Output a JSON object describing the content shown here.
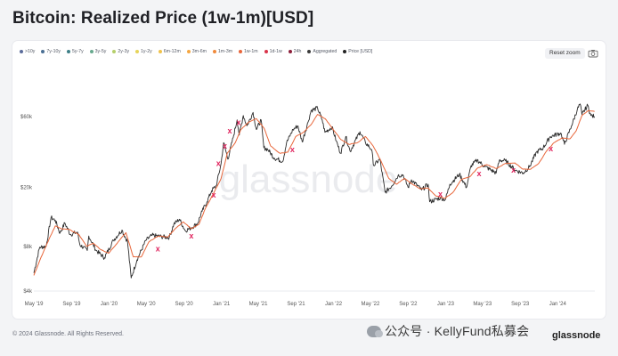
{
  "page": {
    "title": "Bitcoin: Realized Price (1w-1m)[USD]",
    "reset_zoom": "Reset zoom",
    "footer": "© 2024 Glassnode. All Rights Reserved.",
    "watermark_text": "公众号 · KellyFund私募会",
    "brand": "glassnode",
    "chart_watermark": "glassnode",
    "camera_icon": "camera-icon"
  },
  "legend": [
    {
      "label": ">10y",
      "color": "#5b6c9b"
    },
    {
      "label": "7y-10y",
      "color": "#4a6f94"
    },
    {
      "label": "5y-7y",
      "color": "#3e7f87"
    },
    {
      "label": "3y-5y",
      "color": "#67a98e"
    },
    {
      "label": "2y-3y",
      "color": "#b5cf6b"
    },
    {
      "label": "1y-2y",
      "color": "#e6d45a"
    },
    {
      "label": "6m-12m",
      "color": "#f0c24a"
    },
    {
      "label": "3m-6m",
      "color": "#f5a742"
    },
    {
      "label": "1m-3m",
      "color": "#f08a3c"
    },
    {
      "label": "1w-1m",
      "color": "#e8663a"
    },
    {
      "label": "1d-1w",
      "color": "#d9344a"
    },
    {
      "label": "24h",
      "color": "#8c1f3a"
    },
    {
      "label": "Aggregated",
      "color": "#3a3a3a"
    },
    {
      "label": "Price [USD]",
      "color": "#222222"
    }
  ],
  "chart_data": {
    "type": "line",
    "y_scale": "log",
    "ylim": [
      4000,
      100000
    ],
    "y_ticks": [
      {
        "value": 4000,
        "label": "$4k"
      },
      {
        "value": 8000,
        "label": "$8k"
      },
      {
        "value": 20000,
        "label": "$20k"
      },
      {
        "value": 60000,
        "label": "$60k"
      }
    ],
    "x_range": [
      "2019-05-01",
      "2024-05-01"
    ],
    "x_ticks": [
      {
        "date": "2019-05-01",
        "label": "May '19"
      },
      {
        "date": "2019-09-01",
        "label": "Sep '19"
      },
      {
        "date": "2020-01-01",
        "label": "Jan '20"
      },
      {
        "date": "2020-05-01",
        "label": "May '20"
      },
      {
        "date": "2020-09-01",
        "label": "Sep '20"
      },
      {
        "date": "2021-01-01",
        "label": "Jan '21"
      },
      {
        "date": "2021-05-01",
        "label": "May '21"
      },
      {
        "date": "2021-09-01",
        "label": "Sep '21"
      },
      {
        "date": "2022-01-01",
        "label": "Jan '22"
      },
      {
        "date": "2022-05-01",
        "label": "May '22"
      },
      {
        "date": "2022-09-01",
        "label": "Sep '22"
      },
      {
        "date": "2023-01-01",
        "label": "Jan '23"
      },
      {
        "date": "2023-05-01",
        "label": "May '23"
      },
      {
        "date": "2023-09-01",
        "label": "Sep '23"
      },
      {
        "date": "2024-01-01",
        "label": "Jan '24"
      }
    ],
    "grid": false,
    "legend_position": "top",
    "series": [
      {
        "name": "Price [USD]",
        "color": "#2b2b2b",
        "points": [
          [
            "2019-05-01",
            5300
          ],
          [
            "2019-05-20",
            7900
          ],
          [
            "2019-06-10",
            8000
          ],
          [
            "2019-06-26",
            12500
          ],
          [
            "2019-07-10",
            12000
          ],
          [
            "2019-07-25",
            9800
          ],
          [
            "2019-08-10",
            11500
          ],
          [
            "2019-08-28",
            9600
          ],
          [
            "2019-09-20",
            10000
          ],
          [
            "2019-09-28",
            8200
          ],
          [
            "2019-10-22",
            7500
          ],
          [
            "2019-10-27",
            9400
          ],
          [
            "2019-11-20",
            7500
          ],
          [
            "2019-12-17",
            6700
          ],
          [
            "2020-01-15",
            8800
          ],
          [
            "2020-02-12",
            10300
          ],
          [
            "2020-03-01",
            8600
          ],
          [
            "2020-03-13",
            4900
          ],
          [
            "2020-04-01",
            6500
          ],
          [
            "2020-04-30",
            8800
          ],
          [
            "2020-05-20",
            9500
          ],
          [
            "2020-06-20",
            9300
          ],
          [
            "2020-07-15",
            9200
          ],
          [
            "2020-07-30",
            11300
          ],
          [
            "2020-08-17",
            12200
          ],
          [
            "2020-09-05",
            10200
          ],
          [
            "2020-09-25",
            10700
          ],
          [
            "2020-10-15",
            11400
          ],
          [
            "2020-10-30",
            13800
          ],
          [
            "2020-11-15",
            16000
          ],
          [
            "2020-11-30",
            19000
          ],
          [
            "2020-12-15",
            20500
          ],
          [
            "2020-12-31",
            29000
          ],
          [
            "2021-01-08",
            40000
          ],
          [
            "2021-01-22",
            31000
          ],
          [
            "2021-02-10",
            45000
          ],
          [
            "2021-02-21",
            57000
          ],
          [
            "2021-02-28",
            45000
          ],
          [
            "2021-03-13",
            61000
          ],
          [
            "2021-03-25",
            52000
          ],
          [
            "2021-04-14",
            64000
          ],
          [
            "2021-04-25",
            49000
          ],
          [
            "2021-05-10",
            57000
          ],
          [
            "2021-05-19",
            37000
          ],
          [
            "2021-06-01",
            36000
          ],
          [
            "2021-06-22",
            31500
          ],
          [
            "2021-07-20",
            30000
          ],
          [
            "2021-08-01",
            40000
          ],
          [
            "2021-08-22",
            49000
          ],
          [
            "2021-09-07",
            52000
          ],
          [
            "2021-09-21",
            40500
          ],
          [
            "2021-10-10",
            55000
          ],
          [
            "2021-10-20",
            66000
          ],
          [
            "2021-11-10",
            68500
          ],
          [
            "2021-11-25",
            57000
          ],
          [
            "2021-12-04",
            47000
          ],
          [
            "2021-12-27",
            51000
          ],
          [
            "2022-01-10",
            41000
          ],
          [
            "2022-01-24",
            34000
          ],
          [
            "2022-02-10",
            44000
          ],
          [
            "2022-02-24",
            35000
          ],
          [
            "2022-03-28",
            47500
          ],
          [
            "2022-04-15",
            40000
          ],
          [
            "2022-05-05",
            36000
          ],
          [
            "2022-05-12",
            28000
          ],
          [
            "2022-06-01",
            31000
          ],
          [
            "2022-06-18",
            18500
          ],
          [
            "2022-07-10",
            20500
          ],
          [
            "2022-07-30",
            24000
          ],
          [
            "2022-08-15",
            24300
          ],
          [
            "2022-09-01",
            20000
          ],
          [
            "2022-09-12",
            22500
          ],
          [
            "2022-10-15",
            19200
          ],
          [
            "2022-11-05",
            21000
          ],
          [
            "2022-11-10",
            16000
          ],
          [
            "2022-12-15",
            17000
          ],
          [
            "2022-12-31",
            16500
          ],
          [
            "2023-01-15",
            21000
          ],
          [
            "2023-02-15",
            24500
          ],
          [
            "2023-03-10",
            20000
          ],
          [
            "2023-03-25",
            28000
          ],
          [
            "2023-04-14",
            30500
          ],
          [
            "2023-05-10",
            27500
          ],
          [
            "2023-06-15",
            25000
          ],
          [
            "2023-06-25",
            30500
          ],
          [
            "2023-07-15",
            30200
          ],
          [
            "2023-08-17",
            26000
          ],
          [
            "2023-09-11",
            25000
          ],
          [
            "2023-10-01",
            27500
          ],
          [
            "2023-10-24",
            34500
          ],
          [
            "2023-11-15",
            37000
          ],
          [
            "2023-12-08",
            44000
          ],
          [
            "2024-01-11",
            46500
          ],
          [
            "2024-01-23",
            39000
          ],
          [
            "2024-02-15",
            52000
          ],
          [
            "2024-03-05",
            67000
          ],
          [
            "2024-03-14",
            73000
          ],
          [
            "2024-03-20",
            62000
          ],
          [
            "2024-04-08",
            71500
          ],
          [
            "2024-04-18",
            61000
          ],
          [
            "2024-04-30",
            60000
          ]
        ]
      },
      {
        "name": "1w-1m",
        "color": "#e8663a",
        "points": [
          [
            "2019-05-01",
            5100
          ],
          [
            "2019-05-25",
            6800
          ],
          [
            "2019-06-20",
            9000
          ],
          [
            "2019-07-10",
            11000
          ],
          [
            "2019-07-30",
            10500
          ],
          [
            "2019-08-25",
            10400
          ],
          [
            "2019-09-25",
            9600
          ],
          [
            "2019-10-20",
            8000
          ],
          [
            "2019-11-10",
            8400
          ],
          [
            "2019-12-05",
            7600
          ],
          [
            "2019-12-31",
            7200
          ],
          [
            "2020-01-31",
            8600
          ],
          [
            "2020-02-25",
            9900
          ],
          [
            "2020-03-20",
            6800
          ],
          [
            "2020-04-15",
            6800
          ],
          [
            "2020-05-10",
            8600
          ],
          [
            "2020-06-10",
            9400
          ],
          [
            "2020-07-10",
            9250
          ],
          [
            "2020-08-05",
            10600
          ],
          [
            "2020-08-30",
            11700
          ],
          [
            "2020-09-25",
            10500
          ],
          [
            "2020-10-20",
            11300
          ],
          [
            "2020-11-10",
            14500
          ],
          [
            "2020-12-05",
            18000
          ],
          [
            "2020-12-31",
            23000
          ],
          [
            "2021-01-20",
            34000
          ],
          [
            "2021-02-15",
            40000
          ],
          [
            "2021-03-05",
            49000
          ],
          [
            "2021-03-31",
            55000
          ],
          [
            "2021-04-25",
            58000
          ],
          [
            "2021-05-20",
            50000
          ],
          [
            "2021-06-10",
            38000
          ],
          [
            "2021-07-10",
            34000
          ],
          [
            "2021-08-05",
            34500
          ],
          [
            "2021-08-31",
            44000
          ],
          [
            "2021-09-25",
            47000
          ],
          [
            "2021-10-20",
            53000
          ],
          [
            "2021-11-10",
            62000
          ],
          [
            "2021-12-05",
            58000
          ],
          [
            "2021-12-31",
            49000
          ],
          [
            "2022-01-25",
            42000
          ],
          [
            "2022-02-20",
            39000
          ],
          [
            "2022-03-20",
            40000
          ],
          [
            "2022-04-15",
            44000
          ],
          [
            "2022-05-10",
            38000
          ],
          [
            "2022-06-05",
            30000
          ],
          [
            "2022-06-30",
            23000
          ],
          [
            "2022-07-25",
            21000
          ],
          [
            "2022-08-20",
            23000
          ],
          [
            "2022-09-15",
            21000
          ],
          [
            "2022-10-10",
            19600
          ],
          [
            "2022-11-05",
            19800
          ],
          [
            "2022-11-30",
            17500
          ],
          [
            "2022-12-31",
            16900
          ],
          [
            "2023-01-25",
            18500
          ],
          [
            "2023-02-20",
            22500
          ],
          [
            "2023-03-20",
            23500
          ],
          [
            "2023-04-15",
            27000
          ],
          [
            "2023-05-15",
            28500
          ],
          [
            "2023-06-15",
            26800
          ],
          [
            "2023-07-15",
            29000
          ],
          [
            "2023-08-15",
            29200
          ],
          [
            "2023-09-10",
            26500
          ],
          [
            "2023-10-05",
            26500
          ],
          [
            "2023-10-31",
            29000
          ],
          [
            "2023-11-25",
            35000
          ],
          [
            "2023-12-20",
            40000
          ],
          [
            "2024-01-15",
            43000
          ],
          [
            "2024-02-10",
            42500
          ],
          [
            "2024-03-01",
            48000
          ],
          [
            "2024-03-20",
            61000
          ],
          [
            "2024-04-10",
            66000
          ],
          [
            "2024-04-30",
            65000
          ]
        ]
      }
    ],
    "annotations": [
      {
        "date": "2020-06-08",
        "value": 7700,
        "label": "x"
      },
      {
        "date": "2020-09-25",
        "value": 9400,
        "label": "x"
      },
      {
        "date": "2020-12-07",
        "value": 17800,
        "label": "x"
      },
      {
        "date": "2020-12-22",
        "value": 29000,
        "label": "x"
      },
      {
        "date": "2021-01-12",
        "value": 38000,
        "label": "x"
      },
      {
        "date": "2021-01-28",
        "value": 48000,
        "label": "x"
      },
      {
        "date": "2021-02-26",
        "value": 55000,
        "label": "x"
      },
      {
        "date": "2021-08-20",
        "value": 36000,
        "label": "x"
      },
      {
        "date": "2022-12-15",
        "value": 18000,
        "label": "x"
      },
      {
        "date": "2023-04-20",
        "value": 24800,
        "label": "x"
      },
      {
        "date": "2023-08-10",
        "value": 26200,
        "label": "x"
      },
      {
        "date": "2023-12-10",
        "value": 36500,
        "label": "x"
      }
    ]
  }
}
